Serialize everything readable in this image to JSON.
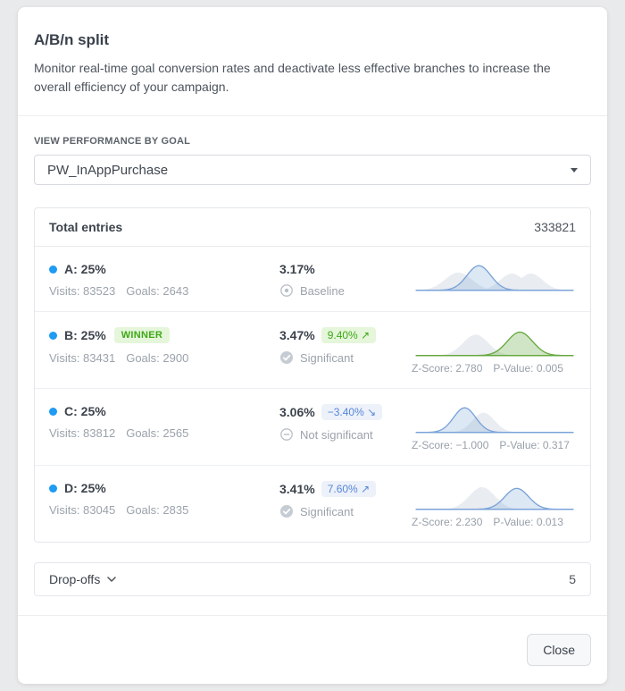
{
  "dialog": {
    "title": "A/B/n split",
    "description": "Monitor real-time goal conversion rates and deactivate less effective branches to increase the overall efficiency of your campaign.",
    "goal_section": {
      "label": "VIEW PERFORMANCE BY GOAL",
      "selected": "PW_InAppPurchase"
    },
    "footer": {
      "close_label": "Close"
    }
  },
  "results": {
    "total": {
      "label": "Total entries",
      "value": "333821"
    },
    "rows": [
      {
        "branch": "A: 25%",
        "winner_badge": null,
        "visits": "Visits: 83523",
        "goals": "Goals: 2643",
        "rate": "3.17%",
        "delta": null,
        "delta_class": null,
        "status": "Baseline",
        "status_icon": "baseline",
        "stats": null,
        "chart": {
          "line": "blue",
          "curves": [
            {
              "c": "gray",
              "mean": 0.27,
              "sd": 0.085,
              "h": 0.72
            },
            {
              "c": "gray",
              "mean": 0.61,
              "sd": 0.075,
              "h": 0.68
            },
            {
              "c": "gray",
              "mean": 0.73,
              "sd": 0.075,
              "h": 0.68
            },
            {
              "c": "blue",
              "mean": 0.4,
              "sd": 0.075,
              "h": 1.0
            }
          ]
        }
      },
      {
        "branch": "B: 25%",
        "winner_badge": "WINNER",
        "visits": "Visits: 83431",
        "goals": "Goals: 2900",
        "rate": "3.47%",
        "delta": "9.40% ↗",
        "delta_class": "delta-green",
        "status": "Significant",
        "status_icon": "significant",
        "stats": {
          "zscore": "Z-Score: 2.780",
          "pvalue": "P-Value: 0.005"
        },
        "chart": {
          "line": "green",
          "curves": [
            {
              "c": "gray",
              "mean": 0.38,
              "sd": 0.08,
              "h": 0.85
            },
            {
              "c": "green",
              "mean": 0.66,
              "sd": 0.08,
              "h": 0.95
            }
          ]
        }
      },
      {
        "branch": "C: 25%",
        "winner_badge": null,
        "visits": "Visits: 83812",
        "goals": "Goals: 2565",
        "rate": "3.06%",
        "delta": "−3.40% ↘",
        "delta_class": "delta-blue",
        "status": "Not significant",
        "status_icon": "not-significant",
        "stats": {
          "zscore": "Z-Score: −1.000",
          "pvalue": "P-Value: 0.317"
        },
        "chart": {
          "line": "blue",
          "curves": [
            {
              "c": "gray",
              "mean": 0.43,
              "sd": 0.07,
              "h": 0.8
            },
            {
              "c": "blue",
              "mean": 0.31,
              "sd": 0.07,
              "h": 1.0
            }
          ]
        }
      },
      {
        "branch": "D: 25%",
        "winner_badge": null,
        "visits": "Visits: 83045",
        "goals": "Goals: 2835",
        "rate": "3.41%",
        "delta": "7.60% ↗",
        "delta_class": "delta-blue",
        "status": "Significant",
        "status_icon": "significant",
        "stats": {
          "zscore": "Z-Score: 2.230",
          "pvalue": "P-Value: 0.013"
        },
        "chart": {
          "line": "blue",
          "curves": [
            {
              "c": "gray",
              "mean": 0.42,
              "sd": 0.08,
              "h": 0.9
            },
            {
              "c": "blue",
              "mean": 0.64,
              "sd": 0.075,
              "h": 0.85
            }
          ]
        }
      }
    ],
    "dropoffs": {
      "label": "Drop-offs",
      "value": "5"
    }
  },
  "chart_colors": {
    "gray": {
      "fill": "#e9ecf1",
      "stroke": ""
    },
    "blue": {
      "fill": "rgba(121,162,216,0.25)",
      "stroke": "#79a2d8"
    },
    "green": {
      "fill": "rgba(101,168,62,0.30)",
      "stroke": "#65a83e"
    }
  },
  "colors": {
    "accent_blue": "#1e9bf2",
    "winner_green": "#3fa817",
    "delta_blue": "#5787d8",
    "page_background": "#e9eaec"
  }
}
